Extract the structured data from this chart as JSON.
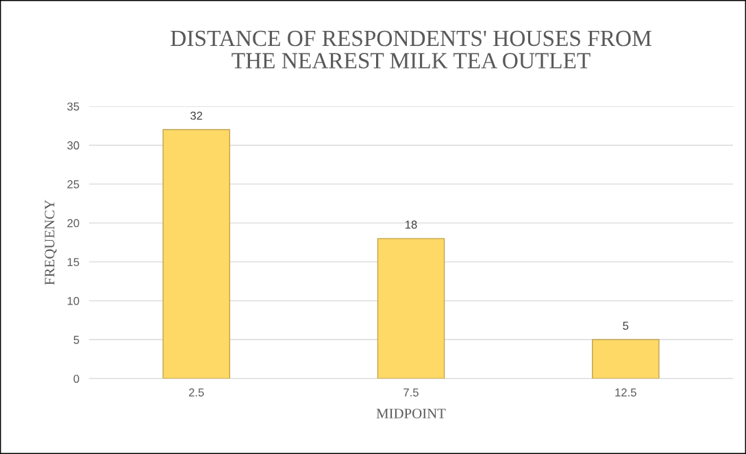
{
  "chart_data": {
    "type": "bar",
    "title": "DISTANCE OF RESPONDENTS' HOUSES FROM\nTHE NEAREST MILK TEA OUTLET",
    "xlabel": "MIDPOINT",
    "ylabel": "FREQUENCY",
    "categories": [
      "2.5",
      "7.5",
      "12.5"
    ],
    "values": [
      32,
      18,
      5
    ],
    "color": "#ffd966",
    "ylim": [
      0,
      35
    ],
    "yticks": [
      0,
      5,
      10,
      15,
      20,
      25,
      30,
      35
    ],
    "grid": "y",
    "data_labels": true,
    "legend": false
  }
}
